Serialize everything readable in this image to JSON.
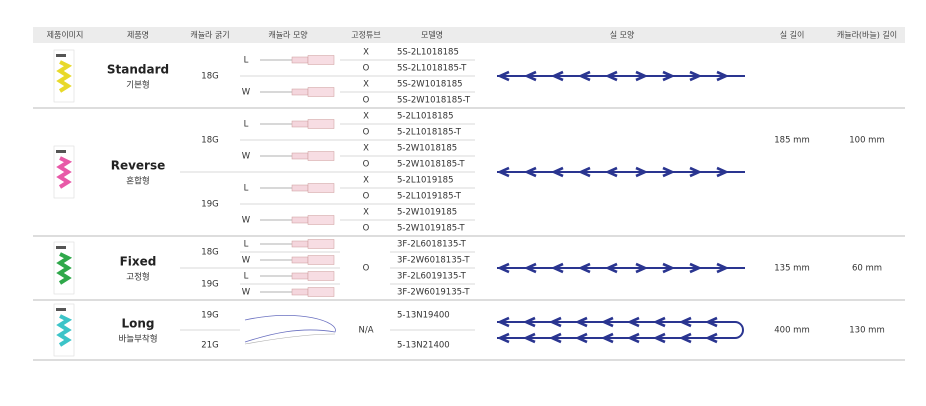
{
  "header": [
    "제품이미지",
    "제품명",
    "캐뉼라 굵기",
    "캐뉼라 모양",
    "고정튜브",
    "모델명",
    "실 모양",
    "실 길이",
    "캐뉼라(바늘) 길이"
  ],
  "groups": [
    {
      "name": "Standard",
      "subtitle": "기본형",
      "gauges": [
        {
          "gauge": "18G",
          "shapes": [
            {
              "shape": "L",
              "models": [
                {
                  "tube": "X",
                  "model": "5S-2L1018185"
                },
                {
                  "tube": "O",
                  "model": "5S-2L1018185-T"
                }
              ]
            },
            {
              "shape": "W",
              "models": [
                {
                  "tube": "X",
                  "model": "5S-2W1018185"
                },
                {
                  "tube": "O",
                  "model": "5S-2W1018185-T"
                }
              ]
            }
          ]
        }
      ]
    },
    {
      "name": "Reverse",
      "subtitle": "혼합형",
      "gauges": [
        {
          "gauge": "18G",
          "shapes": [
            {
              "shape": "L",
              "models": [
                {
                  "tube": "X",
                  "model": "5-2L1018185"
                },
                {
                  "tube": "O",
                  "model": "5-2L1018185-T"
                }
              ]
            },
            {
              "shape": "W",
              "models": [
                {
                  "tube": "X",
                  "model": "5-2W1018185"
                },
                {
                  "tube": "O",
                  "model": "5-2W1018185-T"
                }
              ]
            }
          ]
        },
        {
          "gauge": "19G",
          "shapes": [
            {
              "shape": "L",
              "models": [
                {
                  "tube": "X",
                  "model": "5-2L1019185"
                },
                {
                  "tube": "O",
                  "model": "5-2L1019185-T"
                }
              ]
            },
            {
              "shape": "W",
              "models": [
                {
                  "tube": "X",
                  "model": "5-2W1019185"
                },
                {
                  "tube": "O",
                  "model": "5-2W1019185-T"
                }
              ]
            }
          ]
        }
      ]
    },
    {
      "name": "Fixed",
      "subtitle": "고정형",
      "tube": "O",
      "gauges": [
        {
          "gauge": "18G",
          "shapes": [
            {
              "shape": "L",
              "model": "3F-2L6018135-T"
            },
            {
              "shape": "W",
              "model": "3F-2W6018135-T"
            }
          ]
        },
        {
          "gauge": "19G",
          "shapes": [
            {
              "shape": "L",
              "model": "3F-2L6019135-T"
            },
            {
              "shape": "W",
              "model": "3F-2W6019135-T"
            }
          ]
        }
      ]
    },
    {
      "name": "Long",
      "subtitle": "바늘부착형",
      "tube": "N/A",
      "gauges": [
        {
          "gauge": "19G",
          "model": "5-13N19400"
        },
        {
          "gauge": "21G",
          "model": "5-13N21400"
        }
      ]
    }
  ],
  "lengths": [
    {
      "thread": "185 mm",
      "cannula": "100 mm"
    },
    {
      "thread": "135 mm",
      "cannula": "60 mm"
    },
    {
      "thread": "400 mm",
      "cannula": "130 mm"
    }
  ]
}
